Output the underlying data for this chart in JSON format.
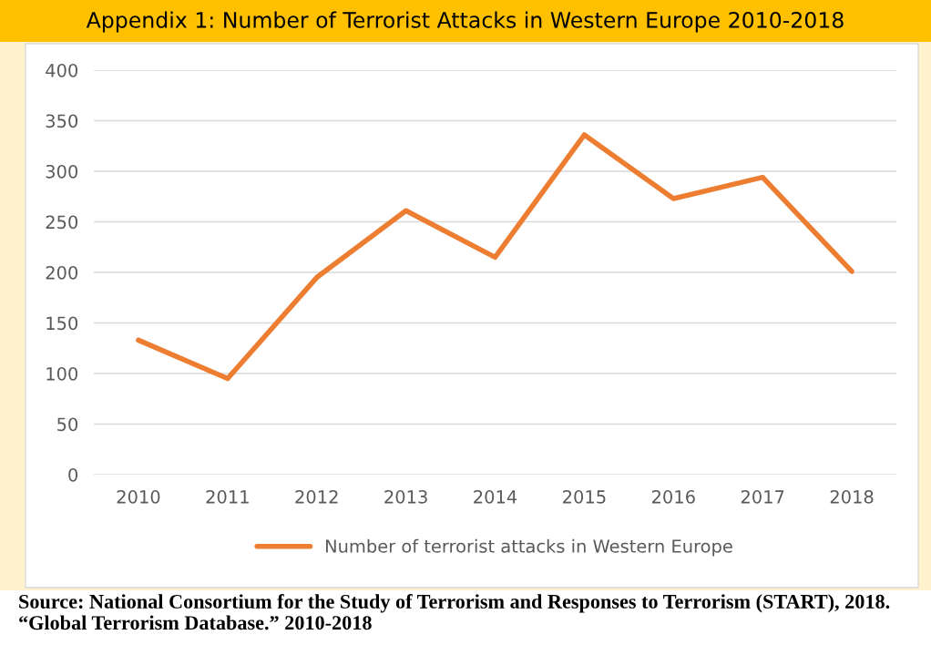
{
  "chart_data": {
    "type": "line",
    "title": "Appendix 1: Number of Terrorist Attacks in Western Europe 2010-2018",
    "categories": [
      "2010",
      "2011",
      "2012",
      "2013",
      "2014",
      "2015",
      "2016",
      "2017",
      "2018"
    ],
    "series": [
      {
        "name": "Number of terrorist attacks in Western Europe",
        "color": "#ed7d31",
        "values": [
          133,
          95,
          195,
          261,
          215,
          336,
          273,
          294,
          201
        ]
      }
    ],
    "ylim": [
      0,
      400
    ],
    "yticks": [
      0,
      50,
      100,
      150,
      200,
      250,
      300,
      350,
      400
    ],
    "grid": "y",
    "legend": "bottom",
    "marker": "none",
    "line_style": "solid",
    "annotations": [
      "Source: National Consortium for the Study of Terrorism and Responses to Terrorism (START), 2018. “Global Terrorism Database.” 2010-2018"
    ]
  }
}
